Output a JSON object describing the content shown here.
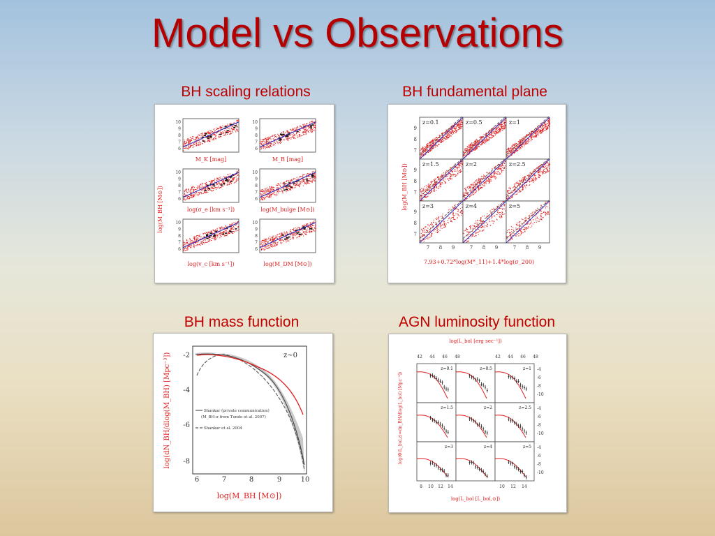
{
  "slide": {
    "title": "Model vs Observations"
  },
  "captions": {
    "scaling": "BH scaling relations",
    "fundamental": "BH fundamental plane",
    "massfunc": "BH mass function",
    "agnlf": "AGN luminosity function"
  },
  "scaling_panel": {
    "ylabel": "log(M_BH [M⊙])",
    "xlabels": [
      "M_K [mag]",
      "M_B [mag]",
      "log(σ_e [km s⁻¹])",
      "log(M_bulge [M⊙])",
      "log(v_c [km s⁻¹])",
      "log(M_DM [M⊙])"
    ]
  },
  "fundamental_panel": {
    "ylabel": "log(M_BH [M⊙])",
    "xlabel": "7.93+0.72*log(M*_11)+1.4*log(σ_200)",
    "redshifts": [
      "z=0.1",
      "z=0.5",
      "z=1",
      "z=1.5",
      "z=2",
      "z=2.5",
      "z=3",
      "z=4",
      "z=5"
    ],
    "yticks": [
      "9",
      "8",
      "7"
    ],
    "xticks": [
      "7",
      "8",
      "9"
    ]
  },
  "mass_function_panel": {
    "ylabel": "log(dN_BH/dlog(M_BH) [Mpc⁻³])",
    "xlabel": "log(M_BH [M⊙])",
    "redshift_label": "z~0",
    "xticks": [
      "6",
      "7",
      "8",
      "9",
      "10"
    ],
    "yticks": [
      "-2",
      "-4",
      "-6",
      "-8"
    ],
    "legend": [
      "Shankar (private communication)",
      "(M_BH-σ from Tundo et al. 2007)",
      "Shankar et al. 2004"
    ]
  },
  "agn_panel": {
    "top_xlabel": "log(L_bol [erg sec⁻¹])",
    "bottom_xlabel": "log(L_bol [L_bol,⊙])",
    "ylabel": "log(Φ(L_bol,z)=dn_BH/dlog(L_bol) [Mpc⁻³])",
    "redshifts": [
      "z=0.1",
      "z=0.5",
      "z=1",
      "z=1.5",
      "z=2",
      "z=2.5",
      "z=3",
      "z=4",
      "z=5"
    ],
    "top_ticks": [
      "42",
      "44",
      "46",
      "48",
      "42",
      "44",
      "46",
      "48"
    ],
    "bottom_ticks": [
      "8",
      "10",
      "12",
      "14",
      "10",
      "12",
      "14"
    ],
    "yticks": [
      "-4",
      "-6",
      "-8",
      "-10"
    ]
  },
  "colors": {
    "title": "#b40000",
    "caption": "#c00000",
    "model": "#e02020",
    "fit": "#3030c0"
  }
}
